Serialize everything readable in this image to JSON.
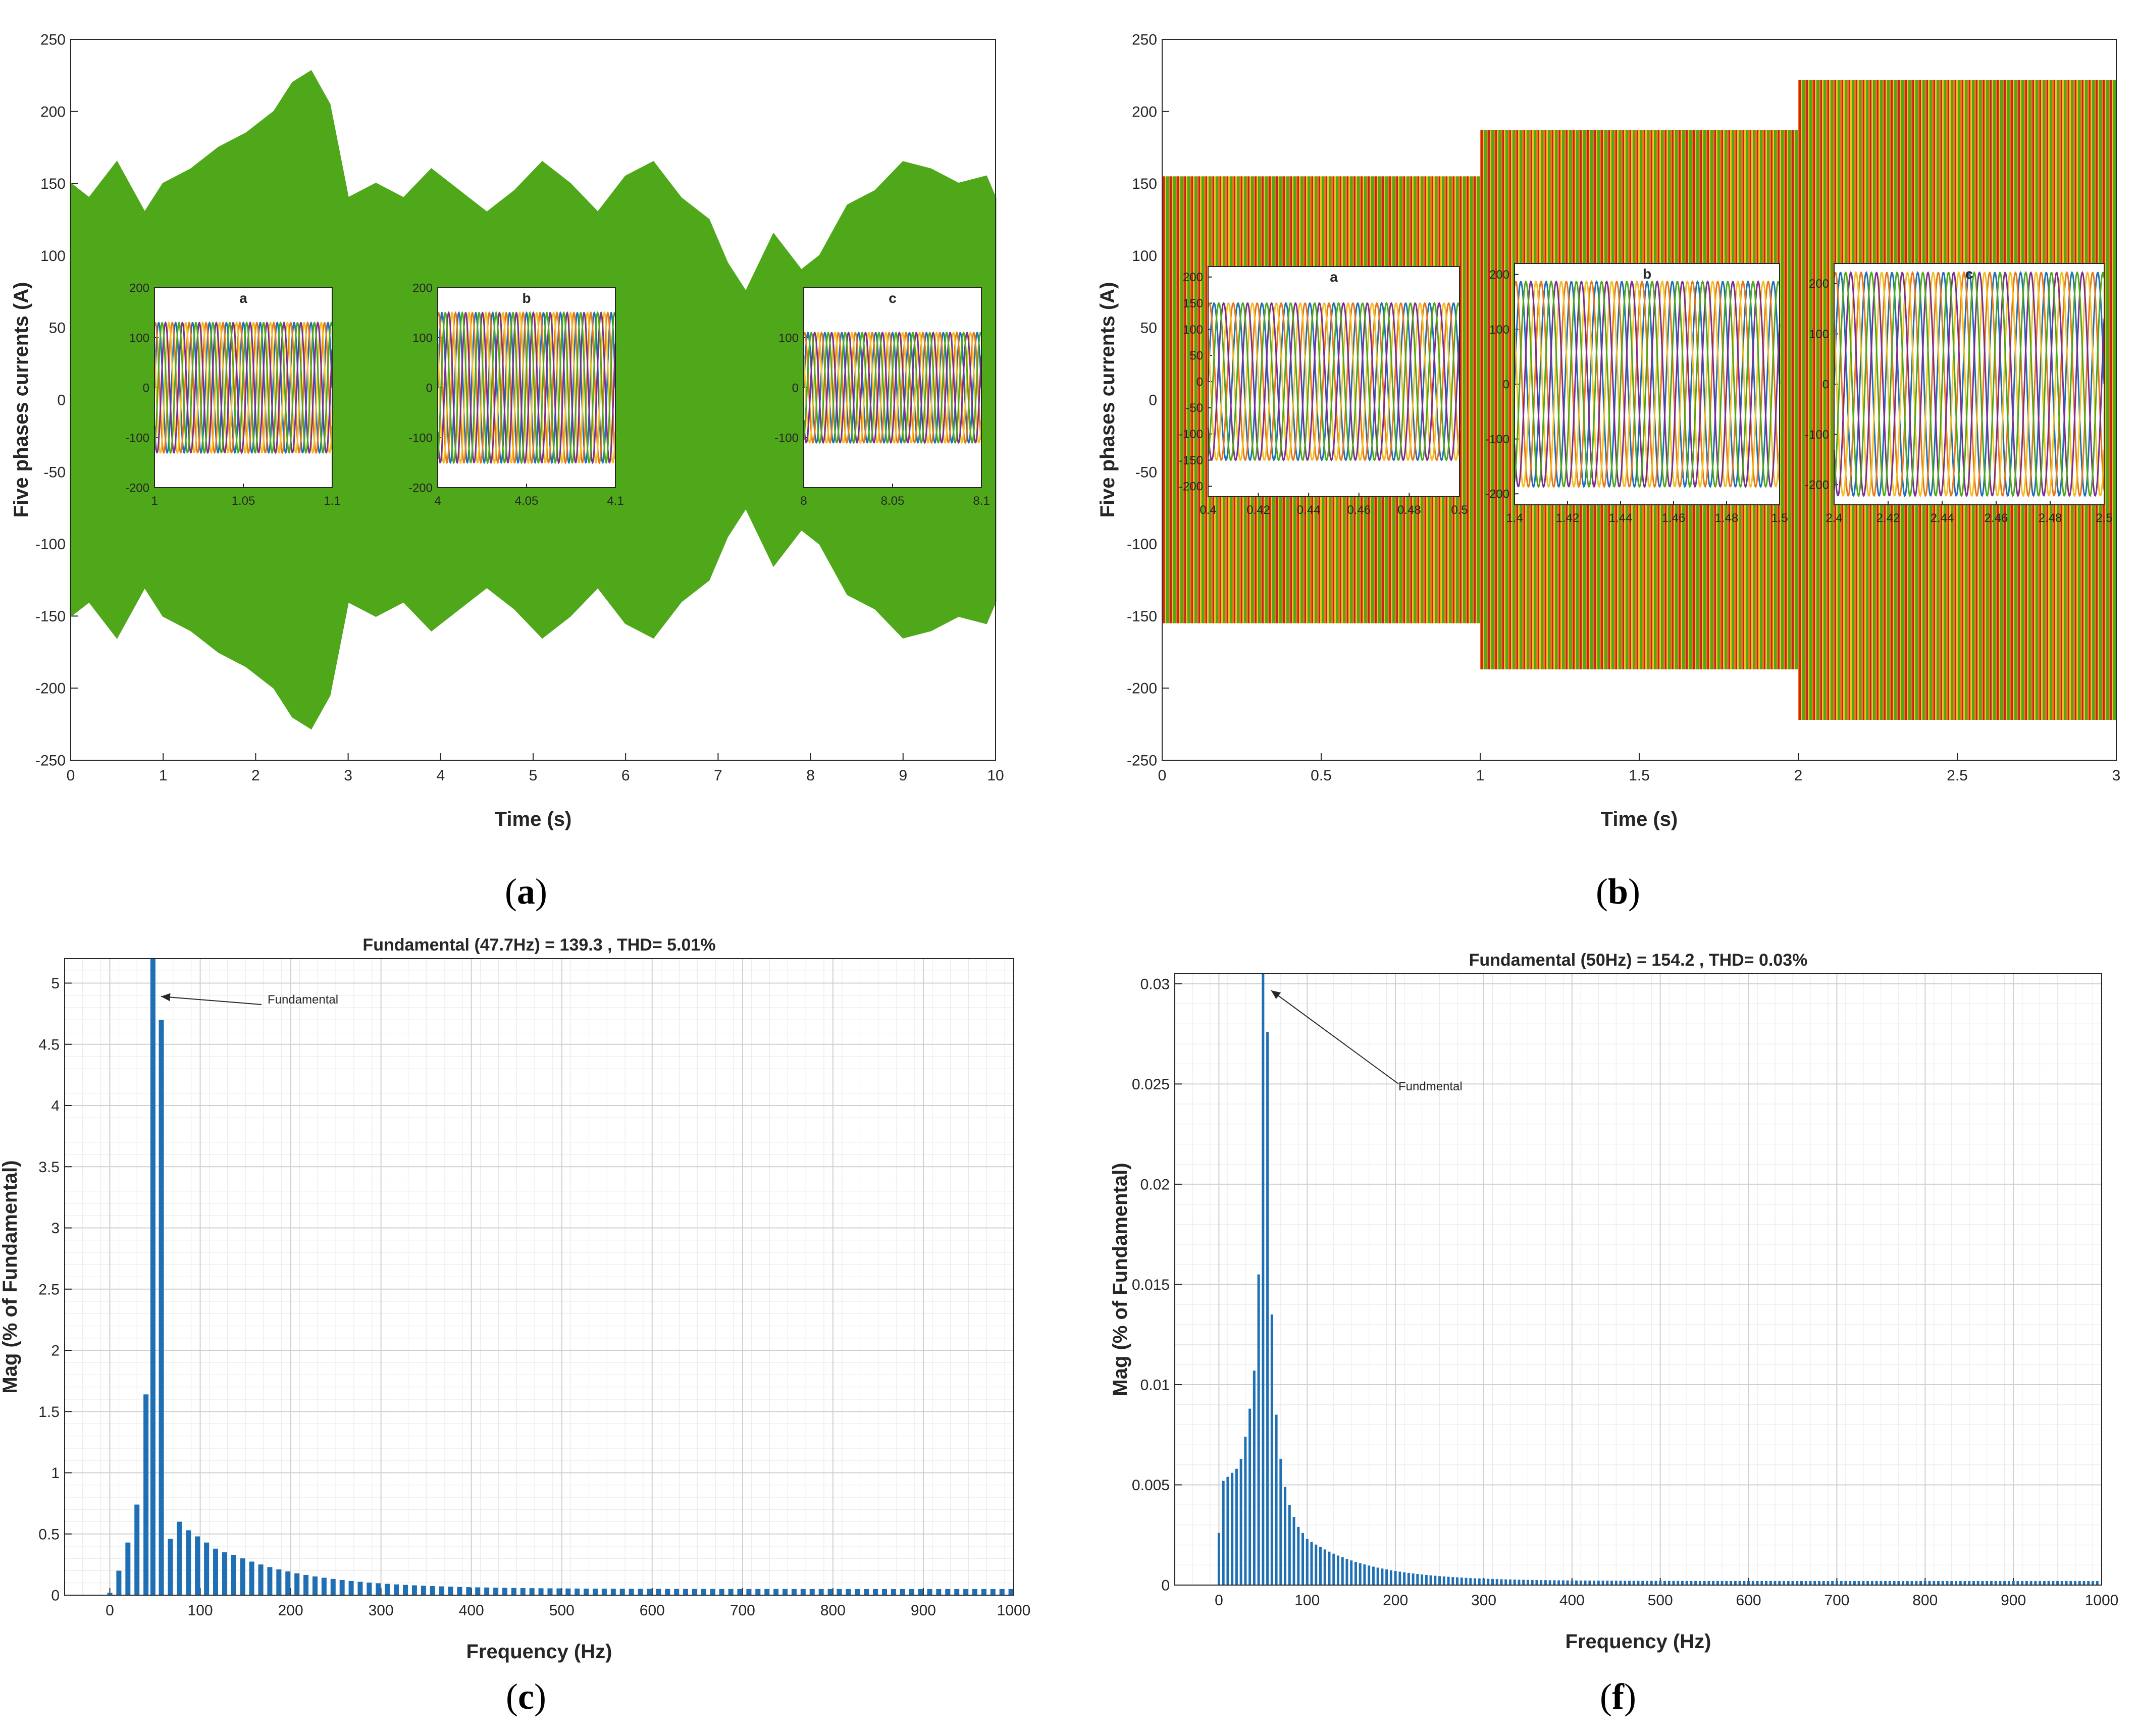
{
  "figure": {
    "panel_labels": [
      "a",
      "b",
      "c",
      "f"
    ]
  },
  "colors": {
    "green": "#4fa81a",
    "blue": "#1f6fb4",
    "orange": "#e8761a",
    "yellow": "#f0c020",
    "purple": "#7d2e8e",
    "red": "#d11f1f",
    "bar": "#1f6fb4"
  },
  "chart_data": [
    {
      "id": "a",
      "type": "line",
      "title": "",
      "xlabel": "Time (s)",
      "ylabel": "Five phases currents (A)",
      "xlim": [
        0,
        10
      ],
      "ylim": [
        -250,
        250
      ],
      "xticks": [
        0,
        1,
        2,
        3,
        4,
        5,
        6,
        7,
        8,
        9,
        10
      ],
      "yticks": [
        -250,
        -200,
        -150,
        -100,
        -50,
        0,
        50,
        100,
        150,
        200,
        250
      ],
      "envelope": {
        "t": [
          0,
          0.2,
          0.5,
          0.8,
          1.0,
          1.3,
          1.6,
          1.9,
          2.2,
          2.4,
          2.6,
          2.8,
          3.0,
          3.3,
          3.6,
          3.9,
          4.2,
          4.5,
          4.8,
          5.1,
          5.4,
          5.7,
          6.0,
          6.3,
          6.6,
          6.9,
          7.1,
          7.3,
          7.6,
          7.9,
          8.1,
          8.4,
          8.7,
          9.0,
          9.3,
          9.6,
          9.9,
          10.0
        ],
        "amp": [
          150,
          140,
          165,
          130,
          150,
          160,
          175,
          185,
          200,
          220,
          228,
          205,
          140,
          150,
          140,
          160,
          145,
          130,
          145,
          165,
          150,
          130,
          155,
          165,
          140,
          125,
          95,
          75,
          115,
          90,
          100,
          135,
          145,
          165,
          160,
          150,
          155,
          140
        ]
      },
      "insets": [
        {
          "label": "a",
          "xlim": [
            1,
            1.1
          ],
          "xticks": [
            1,
            1.05,
            1.1
          ],
          "ylim": [
            -200,
            200
          ],
          "yticks": [
            -200,
            -100,
            0,
            100,
            200
          ],
          "amplitude": 130,
          "phases": 5
        },
        {
          "label": "b",
          "xlim": [
            4,
            4.1
          ],
          "xticks": [
            4,
            4.05,
            4.1
          ],
          "ylim": [
            -200,
            200
          ],
          "yticks": [
            -200,
            -100,
            0,
            100,
            200
          ],
          "amplitude": 150,
          "phases": 5
        },
        {
          "label": "c",
          "xlim": [
            8,
            8.1
          ],
          "xticks": [
            8,
            8.05,
            8.1
          ],
          "ylim": [
            -200,
            200
          ],
          "yticks": [
            -100,
            0,
            100
          ],
          "amplitude": 110,
          "phases": 5
        }
      ]
    },
    {
      "id": "b",
      "type": "line",
      "title": "",
      "xlabel": "Time (s)",
      "ylabel": "Five phases currents (A)",
      "xlim": [
        0,
        3
      ],
      "ylim": [
        -250,
        250
      ],
      "xticks": [
        0,
        0.5,
        1,
        1.5,
        2,
        2.5,
        3
      ],
      "yticks": [
        -250,
        -200,
        -150,
        -100,
        -50,
        0,
        50,
        100,
        150,
        200,
        250
      ],
      "segments": [
        {
          "t0": 0,
          "t1": 1,
          "amp": 155
        },
        {
          "t0": 1,
          "t1": 2,
          "amp": 187
        },
        {
          "t0": 2,
          "t1": 3,
          "amp": 222
        }
      ],
      "insets": [
        {
          "label": "a",
          "xlim": [
            0.4,
            0.5
          ],
          "xticks": [
            0.4,
            0.42,
            0.44,
            0.46,
            0.48,
            0.5
          ],
          "ylim": [
            -220,
            220
          ],
          "yticks": [
            -200,
            -150,
            -100,
            -50,
            0,
            50,
            100,
            150,
            200
          ],
          "amplitude": 150,
          "phases": 5
        },
        {
          "label": "b",
          "xlim": [
            1.4,
            1.5
          ],
          "xticks": [
            1.4,
            1.42,
            1.44,
            1.46,
            1.48,
            1.5
          ],
          "ylim": [
            -220,
            220
          ],
          "yticks": [
            -200,
            -100,
            0,
            100,
            200
          ],
          "amplitude": 187,
          "phases": 5
        },
        {
          "label": "c",
          "xlim": [
            2.4,
            2.5
          ],
          "xticks": [
            2.4,
            2.42,
            2.44,
            2.46,
            2.48,
            2.5
          ],
          "ylim": [
            -240,
            240
          ],
          "yticks": [
            -200,
            -100,
            0,
            100,
            200
          ],
          "amplitude": 222,
          "phases": 5
        }
      ]
    },
    {
      "id": "c",
      "type": "bar",
      "title": "Fundamental (47.7Hz) = 139.3 , THD= 5.01%",
      "xlabel": "Frequency (Hz)",
      "ylabel": "Mag (% of Fundamental)",
      "xlim": [
        -50,
        1000
      ],
      "ylim": [
        0,
        5.2
      ],
      "xticks": [
        0,
        100,
        200,
        300,
        400,
        500,
        600,
        700,
        800,
        900,
        1000
      ],
      "yticks": [
        0,
        0.5,
        1,
        1.5,
        2,
        2.5,
        3,
        3.5,
        4,
        4.5,
        5
      ],
      "annotation": "Fundamental",
      "fundamental_hz": 47.7,
      "bar_step_hz": 10,
      "bars": [
        {
          "x": 0,
          "y": 0.02
        },
        {
          "x": 10,
          "y": 0.2
        },
        {
          "x": 20,
          "y": 0.43
        },
        {
          "x": 30,
          "y": 0.74
        },
        {
          "x": 40,
          "y": 1.64
        },
        {
          "x": 47.7,
          "y": 5.2
        },
        {
          "x": 57,
          "y": 4.7
        },
        {
          "x": 67,
          "y": 0.46
        },
        {
          "x": 77,
          "y": 0.6
        },
        {
          "x": 87,
          "y": 0.53
        },
        {
          "x": 97,
          "y": 0.48
        },
        {
          "x": 107,
          "y": 0.43
        },
        {
          "x": 117,
          "y": 0.38
        },
        {
          "x": 127,
          "y": 0.35
        }
      ],
      "tail": {
        "x0": 137,
        "x1": 997,
        "y0": 0.33,
        "y1": 0.05,
        "decay": 90,
        "floor": 0.05
      }
    },
    {
      "id": "f",
      "type": "bar",
      "title": "Fundamental (50Hz) = 154.2 , THD= 0.03%",
      "xlabel": "Frequency (Hz)",
      "ylabel": "Mag (% of Fundamental)",
      "xlim": [
        -50,
        1000
      ],
      "ylim": [
        0,
        0.0305
      ],
      "xticks": [
        0,
        100,
        200,
        300,
        400,
        500,
        600,
        700,
        800,
        900,
        1000
      ],
      "yticks": [
        0,
        0.005,
        0.01,
        0.015,
        0.02,
        0.025,
        0.03
      ],
      "annotation": "Fundmental",
      "fundamental_hz": 50,
      "bar_step_hz": 5,
      "bars": [
        {
          "x": 0,
          "y": 0.0026
        },
        {
          "x": 5,
          "y": 0.0052
        },
        {
          "x": 10,
          "y": 0.0054
        },
        {
          "x": 15,
          "y": 0.0056
        },
        {
          "x": 20,
          "y": 0.0058
        },
        {
          "x": 25,
          "y": 0.0063
        },
        {
          "x": 30,
          "y": 0.0074
        },
        {
          "x": 35,
          "y": 0.0088
        },
        {
          "x": 40,
          "y": 0.0107
        },
        {
          "x": 45,
          "y": 0.0155
        },
        {
          "x": 50,
          "y": 0.0305
        },
        {
          "x": 55,
          "y": 0.0276
        },
        {
          "x": 60,
          "y": 0.0135
        },
        {
          "x": 65,
          "y": 0.0085
        },
        {
          "x": 70,
          "y": 0.0063
        },
        {
          "x": 75,
          "y": 0.0049
        },
        {
          "x": 80,
          "y": 0.004
        },
        {
          "x": 85,
          "y": 0.0034
        },
        {
          "x": 90,
          "y": 0.0029
        },
        {
          "x": 95,
          "y": 0.0026
        }
      ],
      "tail": {
        "x0": 100,
        "x1": 995,
        "y0": 0.0023,
        "y1": 0.0001,
        "decay": 70,
        "floor": 0.0002
      }
    }
  ]
}
